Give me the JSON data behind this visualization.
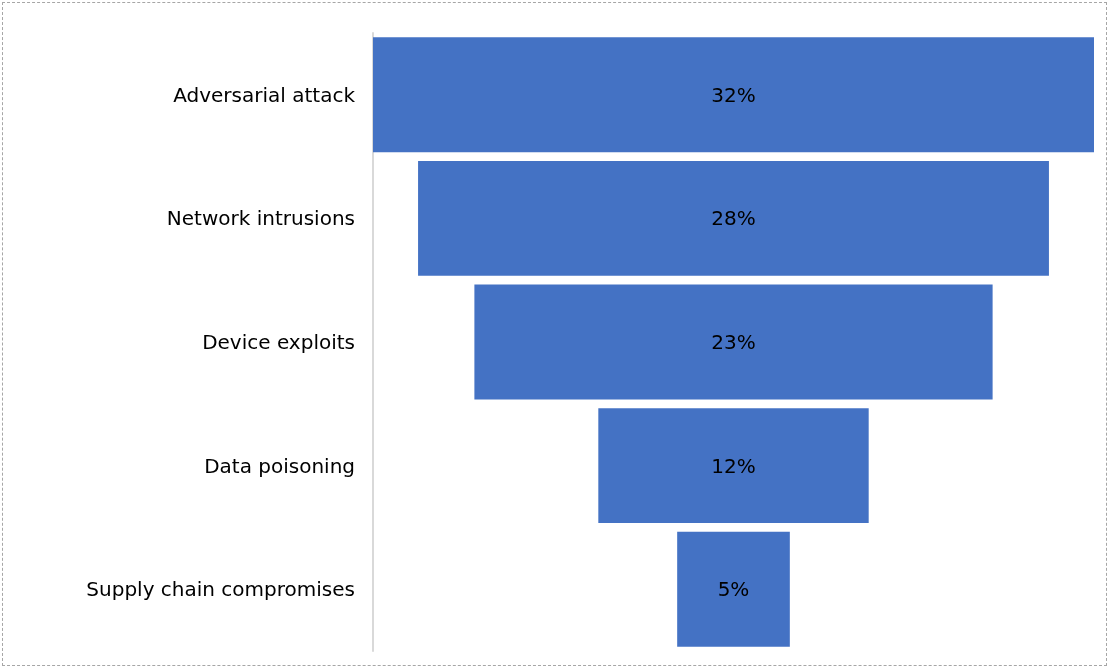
{
  "chart_data": {
    "type": "other",
    "categories": [
      "Adversarial attack",
      "Network intrusions",
      "Device exploits",
      "Data poisoning",
      "Supply chain compromises"
    ],
    "values": [
      32,
      28,
      23,
      12,
      5
    ],
    "value_labels": [
      "32%",
      "28%",
      "23%",
      "12%",
      "5%"
    ],
    "color": "#4472c4"
  }
}
